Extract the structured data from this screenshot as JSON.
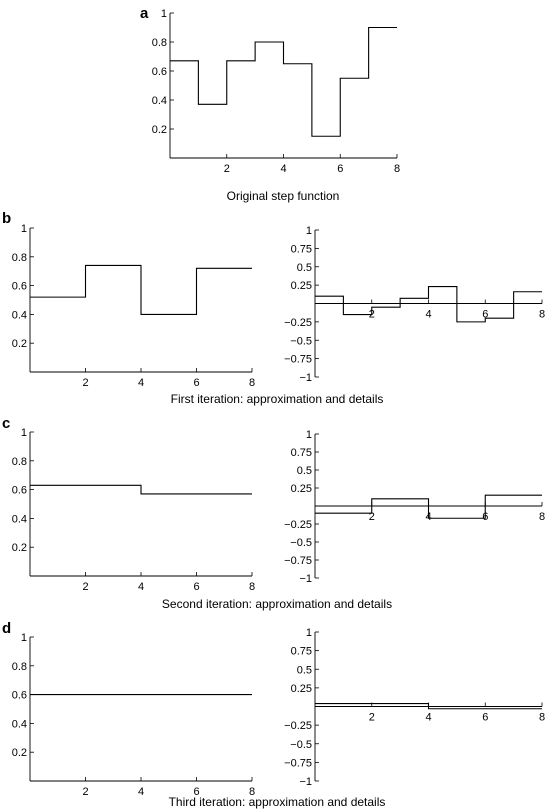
{
  "chart_data": [
    {
      "type": "line",
      "step": true,
      "panel_label": "a",
      "caption": "Original step function",
      "xlim": [
        0,
        8
      ],
      "ylim": [
        0,
        1
      ],
      "x_ticks": [
        2,
        4,
        6,
        8
      ],
      "y_ticks": [
        0.2,
        0.4,
        0.6,
        0.8,
        1
      ],
      "x_tick_labels": [
        "2",
        "4",
        "6",
        "8"
      ],
      "y_tick_labels": [
        "0.2",
        "0.4",
        "0.6",
        "0.8",
        "1"
      ],
      "series": [
        {
          "edges": [
            0,
            1,
            2,
            3,
            4,
            5,
            6,
            7,
            8
          ],
          "values": [
            0.67,
            0.37,
            0.67,
            0.8,
            0.65,
            0.15,
            0.55,
            0.9
          ]
        }
      ]
    },
    {
      "type": "line",
      "step": true,
      "panel_label": "b",
      "caption": "First iteration: approximation and details",
      "xlim": [
        0,
        8
      ],
      "ylim": [
        0,
        1
      ],
      "x_ticks": [
        2,
        4,
        6,
        8
      ],
      "y_ticks": [
        0.2,
        0.4,
        0.6,
        0.8,
        1
      ],
      "x_tick_labels": [
        "2",
        "4",
        "6",
        "8"
      ],
      "y_tick_labels": [
        "0.2",
        "0.4",
        "0.6",
        "0.8",
        "1"
      ],
      "series": [
        {
          "edges": [
            0,
            2,
            4,
            6,
            8
          ],
          "values": [
            0.52,
            0.74,
            0.4,
            0.72
          ]
        }
      ]
    },
    {
      "type": "line",
      "step": true,
      "xlim": [
        0,
        8
      ],
      "ylim": [
        -1,
        1
      ],
      "x_ticks": [
        2,
        4,
        6,
        8
      ],
      "y_ticks": [
        -1,
        -0.75,
        -0.5,
        -0.25,
        0.25,
        0.5,
        0.75,
        1
      ],
      "x_tick_labels": [
        "2",
        "4",
        "6",
        "8"
      ],
      "y_tick_labels": [
        "−1",
        "−0.75",
        "−0.5",
        "−0.25",
        "0.25",
        "0.5",
        "0.75",
        "1"
      ],
      "series": [
        {
          "edges": [
            0,
            1,
            2,
            3,
            4,
            5,
            6,
            7,
            8
          ],
          "values": [
            0.1,
            -0.15,
            -0.05,
            0.07,
            0.23,
            -0.25,
            -0.2,
            0.16
          ]
        }
      ]
    },
    {
      "type": "line",
      "step": true,
      "panel_label": "c",
      "caption": "Second iteration: approximation and details",
      "xlim": [
        0,
        8
      ],
      "ylim": [
        0,
        1
      ],
      "x_ticks": [
        2,
        4,
        6,
        8
      ],
      "y_ticks": [
        0.2,
        0.4,
        0.6,
        0.8,
        1
      ],
      "x_tick_labels": [
        "2",
        "4",
        "6",
        "8"
      ],
      "y_tick_labels": [
        "0.2",
        "0.4",
        "0.6",
        "0.8",
        "1"
      ],
      "series": [
        {
          "edges": [
            0,
            4,
            8
          ],
          "values": [
            0.63,
            0.57
          ]
        }
      ]
    },
    {
      "type": "line",
      "step": true,
      "xlim": [
        0,
        8
      ],
      "ylim": [
        -1,
        1
      ],
      "x_ticks": [
        2,
        4,
        6,
        8
      ],
      "y_ticks": [
        -1,
        -0.75,
        -0.5,
        -0.25,
        0.25,
        0.5,
        0.75,
        1
      ],
      "x_tick_labels": [
        "2",
        "4",
        "6",
        "8"
      ],
      "y_tick_labels": [
        "−1",
        "−0.75",
        "−0.5",
        "−0.25",
        "0.25",
        "0.5",
        "0.75",
        "1"
      ],
      "series": [
        {
          "edges": [
            0,
            2,
            4,
            6,
            8
          ],
          "values": [
            -0.1,
            0.1,
            -0.17,
            0.15
          ]
        }
      ]
    },
    {
      "type": "line",
      "step": true,
      "panel_label": "d",
      "caption": "Third iteration: approximation and details",
      "xlim": [
        0,
        8
      ],
      "ylim": [
        0,
        1
      ],
      "x_ticks": [
        2,
        4,
        6,
        8
      ],
      "y_ticks": [
        0.2,
        0.4,
        0.6,
        0.8,
        1
      ],
      "x_tick_labels": [
        "2",
        "4",
        "6",
        "8"
      ],
      "y_tick_labels": [
        "0.2",
        "0.4",
        "0.6",
        "0.8",
        "1"
      ],
      "series": [
        {
          "edges": [
            0,
            8
          ],
          "values": [
            0.6
          ]
        }
      ]
    },
    {
      "type": "line",
      "step": true,
      "xlim": [
        0,
        8
      ],
      "ylim": [
        -1,
        1
      ],
      "x_ticks": [
        2,
        4,
        6,
        8
      ],
      "y_ticks": [
        -1,
        -0.75,
        -0.5,
        -0.25,
        0.25,
        0.5,
        0.75,
        1
      ],
      "x_tick_labels": [
        "2",
        "4",
        "6",
        "8"
      ],
      "y_tick_labels": [
        "−1",
        "−0.75",
        "−0.5",
        "−0.25",
        "0.25",
        "0.5",
        "0.75",
        "1"
      ],
      "series": [
        {
          "edges": [
            0,
            4,
            8
          ],
          "values": [
            0.04,
            -0.03
          ]
        }
      ]
    }
  ]
}
